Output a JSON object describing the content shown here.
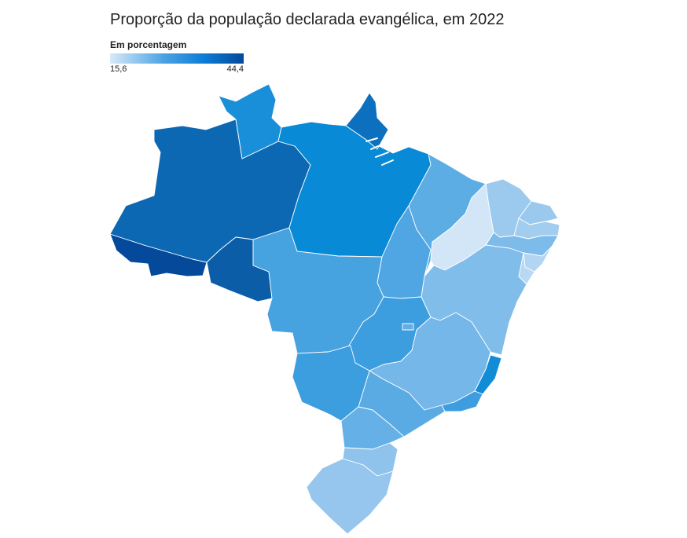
{
  "title": "Proporção da população declarada evangélica, em 2022",
  "legend": {
    "label": "Em porcentagem",
    "min": "15,6",
    "max": "44,4",
    "colors": [
      "#d8e9f8",
      "#4aa3e3",
      "#0d7dd6",
      "#04499a"
    ]
  },
  "states": [
    {
      "uf": "AC",
      "color": "#04499a"
    },
    {
      "uf": "AM",
      "color": "#0d68b4"
    },
    {
      "uf": "RR",
      "color": "#1a8fd9"
    },
    {
      "uf": "RO",
      "color": "#0c5da8"
    },
    {
      "uf": "PA",
      "color": "#098ad6"
    },
    {
      "uf": "AP",
      "color": "#0d70bf"
    },
    {
      "uf": "MT",
      "color": "#47a2e0"
    },
    {
      "uf": "TO",
      "color": "#50a6e2"
    },
    {
      "uf": "MA",
      "color": "#5dade5"
    },
    {
      "uf": "PI",
      "color": "#d3e6f7"
    },
    {
      "uf": "CE",
      "color": "#9ccaef"
    },
    {
      "uf": "RN",
      "color": "#9bc9ee"
    },
    {
      "uf": "PB",
      "color": "#a3cdef"
    },
    {
      "uf": "PE",
      "color": "#7dbbea"
    },
    {
      "uf": "AL",
      "color": "#b1d5f2"
    },
    {
      "uf": "SE",
      "color": "#b8d8f3"
    },
    {
      "uf": "BA",
      "color": "#80bdea"
    },
    {
      "uf": "GO",
      "color": "#3c9ddf"
    },
    {
      "uf": "DF",
      "color": "#64aee5"
    },
    {
      "uf": "MG",
      "color": "#75b7e8"
    },
    {
      "uf": "ES",
      "color": "#138cd8"
    },
    {
      "uf": "RJ",
      "color": "#3d9ddf"
    },
    {
      "uf": "SP",
      "color": "#5aabe4"
    },
    {
      "uf": "MS",
      "color": "#3d9edf"
    },
    {
      "uf": "PR",
      "color": "#65b0e6"
    },
    {
      "uf": "SC",
      "color": "#8fc3ec"
    },
    {
      "uf": "RS",
      "color": "#96c6ed"
    }
  ]
}
